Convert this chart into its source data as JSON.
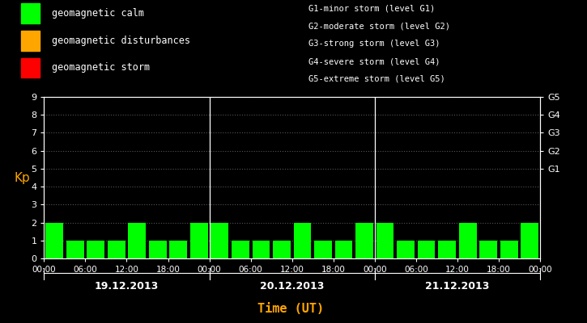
{
  "background_color": "#000000",
  "plot_bg_color": "#000000",
  "text_color": "#ffffff",
  "xlabel_color": "#ffa500",
  "ylabel_color": "#ffa500",
  "grid_dot_color": "#555555",
  "day_line_color": "#ffffff",
  "ylim": [
    0,
    9
  ],
  "yticks": [
    0,
    1,
    2,
    3,
    4,
    5,
    6,
    7,
    8,
    9
  ],
  "ylabel": "Kp",
  "xlabel": "Time (UT)",
  "days": [
    "19.12.2013",
    "20.12.2013",
    "21.12.2013"
  ],
  "kp_values": [
    2,
    1,
    1,
    1,
    2,
    1,
    1,
    2,
    2,
    1,
    1,
    1,
    2,
    1,
    1,
    2,
    2,
    1,
    1,
    1,
    2,
    1,
    1,
    2
  ],
  "bar_colors": [
    "#00ff00",
    "#00ff00",
    "#00ff00",
    "#00ff00",
    "#00ff00",
    "#00ff00",
    "#00ff00",
    "#00ff00",
    "#00ff00",
    "#00ff00",
    "#00ff00",
    "#00ff00",
    "#00ff00",
    "#00ff00",
    "#00ff00",
    "#00ff00",
    "#00ff00",
    "#00ff00",
    "#00ff00",
    "#00ff00",
    "#00ff00",
    "#00ff00",
    "#00ff00",
    "#00ff00"
  ],
  "legend_items": [
    {
      "label": "geomagnetic calm",
      "color": "#00ff00"
    },
    {
      "label": "geomagnetic disturbances",
      "color": "#ffa500"
    },
    {
      "label": "geomagnetic storm",
      "color": "#ff0000"
    }
  ],
  "right_axis_labels": [
    {
      "y": 5,
      "text": "G1"
    },
    {
      "y": 6,
      "text": "G2"
    },
    {
      "y": 7,
      "text": "G3"
    },
    {
      "y": 8,
      "text": "G4"
    },
    {
      "y": 9,
      "text": "G5"
    }
  ],
  "storm_legend": [
    "G1-minor storm (level G1)",
    "G2-moderate storm (level G2)",
    "G3-strong storm (level G3)",
    "G4-severe storm (level G4)",
    "G5-extreme storm (level G5)"
  ],
  "day_boundaries_bar": [
    8,
    16
  ],
  "bar_width": 0.85,
  "total_bars": 24
}
